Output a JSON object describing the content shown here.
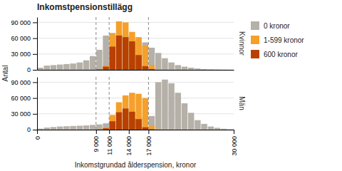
{
  "chart_data": [
    {
      "type": "histogram",
      "title": "Inkomstpensionstillägg",
      "ylabel": "Antal",
      "subtitle": "Kvinnor",
      "bins": [
        0,
        1000,
        2000,
        3000,
        4000,
        5000,
        6000,
        7000,
        8000,
        9000,
        10000,
        11000,
        12000,
        13000,
        14000,
        15000,
        16000,
        17000,
        18000,
        19000,
        20000,
        21000,
        22000,
        23000,
        24000,
        25000,
        26000,
        27000,
        28000,
        29000,
        30000
      ],
      "series": [
        {
          "name": "0 kronor",
          "color": "#b5b0a8",
          "values": [
            4000,
            8000,
            9000,
            10000,
            11000,
            12000,
            14000,
            18000,
            26000,
            38000,
            65000,
            70000,
            68000,
            66000,
            62000,
            57000,
            52000,
            42000,
            32000,
            22000,
            14000,
            9000,
            6000,
            4000,
            2500,
            1500,
            1000,
            700,
            400,
            150
          ]
        },
        {
          "name": "1-599 kronor",
          "color": "#f5a02a",
          "values": [
            0,
            0,
            0,
            0,
            0,
            0,
            0,
            0,
            0,
            1500,
            8000,
            68000,
            92000,
            90000,
            72000,
            62000,
            46000,
            9000,
            1500,
            300,
            0,
            0,
            0,
            0,
            0,
            0,
            0,
            0,
            0,
            0
          ]
        },
        {
          "name": "600 kronor",
          "color": "#b84000",
          "values": [
            0,
            0,
            0,
            0,
            0,
            0,
            0,
            0,
            0,
            800,
            6000,
            44000,
            65000,
            62000,
            54000,
            28000,
            7000,
            1500,
            0,
            0,
            0,
            0,
            0,
            0,
            0,
            0,
            0,
            0,
            0,
            0
          ]
        }
      ],
      "vlines": [
        9000,
        11000,
        17000
      ],
      "xlim": [
        0,
        30000
      ],
      "ylim": [
        0,
        100000
      ],
      "yticks": [
        0,
        {
          "value": 30000,
          "label": "30 000"
        },
        {
          "value": 60000,
          "label": "60 000"
        },
        {
          "value": 90000,
          "label": "90 000"
        }
      ],
      "tick_labels": "y",
      "grid": true,
      "legend": "right"
    },
    {
      "type": "histogram",
      "xlabel": "Inkomstgrundad ålderspension, kronor",
      "subtitle": "Män",
      "bins": [
        0,
        1000,
        2000,
        3000,
        4000,
        5000,
        6000,
        7000,
        8000,
        9000,
        10000,
        11000,
        12000,
        13000,
        14000,
        15000,
        16000,
        17000,
        18000,
        19000,
        20000,
        21000,
        22000,
        23000,
        24000,
        25000,
        26000,
        27000,
        28000,
        29000,
        30000
      ],
      "series": [
        {
          "color": "#b5b0a8",
          "values": [
            2000,
            4000,
            5000,
            6000,
            6500,
            7000,
            7500,
            8000,
            9000,
            10000,
            12000,
            14000,
            16000,
            18000,
            20000,
            22000,
            24000,
            26000,
            90000,
            95000,
            88000,
            70000,
            50000,
            32000,
            18000,
            11000,
            6000,
            3500,
            1800,
            700
          ]
        },
        {
          "color": "#f5a02a",
          "values": [
            0,
            0,
            0,
            0,
            0,
            0,
            0,
            0,
            0,
            800,
            4000,
            28000,
            52000,
            65000,
            70000,
            68000,
            60000,
            7000,
            1500,
            0,
            0,
            0,
            0,
            0,
            0,
            0,
            0,
            0,
            0,
            0
          ]
        },
        {
          "color": "#b84000",
          "values": [
            0,
            0,
            0,
            0,
            0,
            0,
            0,
            0,
            0,
            400,
            2500,
            16000,
            33000,
            40000,
            34000,
            20000,
            4500,
            800,
            0,
            0,
            0,
            0,
            0,
            0,
            0,
            0,
            0,
            0,
            0,
            0
          ]
        }
      ],
      "vlines": [
        9000,
        11000,
        17000
      ],
      "xlim": [
        0,
        30000
      ],
      "ylim": [
        0,
        100000
      ],
      "yticks": [
        0,
        {
          "value": 30000,
          "label": "30 000"
        },
        {
          "value": 60000,
          "label": "60 000"
        },
        {
          "value": 90000,
          "label": "90 000"
        }
      ],
      "xticks": [
        0,
        {
          "value": 9000,
          "label": "9 000"
        },
        {
          "value": 11000,
          "label": "11 000"
        },
        {
          "value": 14000,
          "label": "14 000"
        },
        {
          "value": 17000,
          "label": "17 000"
        },
        {
          "value": 30000,
          "label": "30 000"
        }
      ],
      "grid": true
    }
  ]
}
